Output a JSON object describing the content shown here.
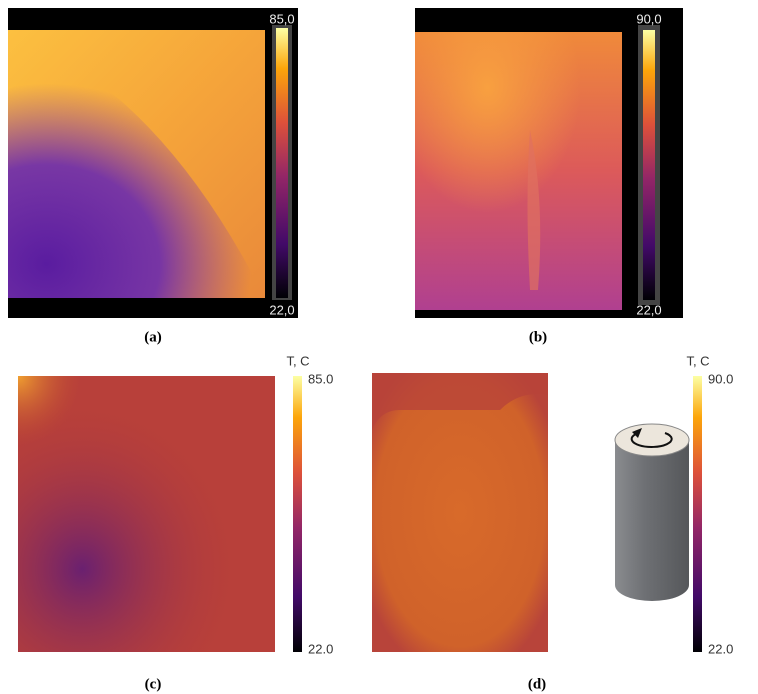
{
  "panels": [
    {
      "caption": "(a)",
      "colorbar": {
        "max": "85,0",
        "min": "22,0"
      }
    },
    {
      "caption": "(b)",
      "colorbar": {
        "max": "90,0",
        "min": "22,0"
      }
    },
    {
      "caption": "(c)",
      "colorbar": {
        "title": "T, C",
        "max": "85.0",
        "min": "22.0"
      }
    },
    {
      "caption": "(d)",
      "colorbar": {
        "title": "T, C",
        "max": "90.0",
        "min": "22.0"
      }
    }
  ]
}
